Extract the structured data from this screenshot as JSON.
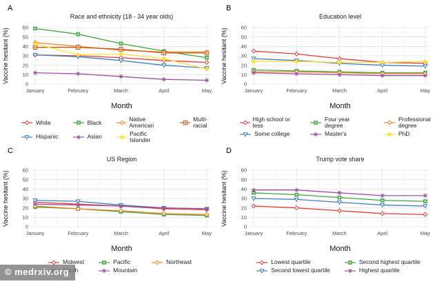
{
  "watermark": "© medrxiv.org",
  "axes": {
    "xlabel": "Month",
    "ylabel": "Vaccine hesitant (%)"
  },
  "chart_data": {
    "type": "line",
    "x_categories": [
      "January",
      "February",
      "March",
      "April",
      "May"
    ],
    "xlabel": "Month",
    "ylabel": "Vaccine hesitant (%)",
    "ylim": [
      0,
      60
    ],
    "yticks": [
      0,
      10,
      20,
      30,
      40,
      50,
      60
    ],
    "grid": true,
    "legend_position": "bottom",
    "panels": [
      {
        "panel_label": "A",
        "title": "Race and ethnicity (18 - 34 year olds)",
        "legend_columns": 4,
        "series": [
          {
            "name": "White",
            "color": "#E03B38",
            "marker": "diamond-open",
            "values": [
              31,
              30,
              28,
              25,
              23
            ]
          },
          {
            "name": "Black",
            "color": "#3FA43F",
            "marker": "square-cross",
            "values": [
              59,
              53,
              43,
              35,
              28
            ]
          },
          {
            "name": "Native American",
            "color": "#F58220",
            "marker": "diamond-open",
            "values": [
              44,
              40,
              36,
              34,
              34
            ]
          },
          {
            "name": "Multi-racial",
            "color": "#C05A17",
            "marker": "square-plus-open",
            "values": [
              39,
              39,
              37,
              33,
              33
            ]
          },
          {
            "name": "Hispanic",
            "color": "#3E7FC1",
            "marker": "triangle-down-open",
            "values": [
              31,
              29,
              25,
              20,
              17
            ]
          },
          {
            "name": "Asian",
            "color": "#9A4FA0",
            "marker": "asterisk",
            "values": [
              12,
              11,
              8,
              5,
              4
            ]
          },
          {
            "name": "Pacific Islander",
            "color": "#FFE135",
            "marker": "diamond-filled",
            "values": [
              43,
              31,
              32,
              27,
              16
            ]
          }
        ]
      },
      {
        "panel_label": "B",
        "title": "Education level",
        "legend_columns": 3,
        "series": [
          {
            "name": "High school or less",
            "color": "#E03B38",
            "marker": "diamond-open",
            "values": [
              35,
              32,
              27,
              23,
              22
            ]
          },
          {
            "name": "Four year degree",
            "color": "#3FA43F",
            "marker": "square-cross",
            "values": [
              15,
              14,
              13,
              12,
              12
            ]
          },
          {
            "name": "Professional degree",
            "color": "#F58220",
            "marker": "diamond-open",
            "wrap": true,
            "values": [
              13,
              13,
              12,
              11,
              11
            ]
          },
          {
            "name": "Some college",
            "color": "#3E7FC1",
            "marker": "triangle-down-open",
            "values": [
              27,
              25,
              22,
              20,
              19
            ]
          },
          {
            "name": "Master's",
            "color": "#9A4FA0",
            "marker": "asterisk",
            "values": [
              12,
              11,
              10,
              9,
              9
            ]
          },
          {
            "name": "PhD",
            "color": "#FFE135",
            "marker": "diamond-filled",
            "values": [
              24,
              24,
              23,
              23,
              24
            ]
          }
        ]
      },
      {
        "panel_label": "C",
        "title": "US Region",
        "legend_columns": 3,
        "series": [
          {
            "name": "Midwest",
            "color": "#E03B38",
            "marker": "diamond-open",
            "values": [
              26,
              24,
              22,
              19,
              18
            ]
          },
          {
            "name": "Pacific",
            "color": "#3FA43F",
            "marker": "square-cross",
            "values": [
              21,
              19,
              16,
              13,
              12
            ]
          },
          {
            "name": "Northeast",
            "color": "#F58220",
            "marker": "diamond-open",
            "values": [
              22,
              19,
              17,
              14,
              13
            ]
          },
          {
            "name": "South",
            "color": "#3E7FC1",
            "marker": "triangle-down-open",
            "values": [
              28,
              27,
              23,
              20,
              19
            ]
          },
          {
            "name": "Mountain",
            "color": "#9A4FA0",
            "marker": "asterisk",
            "values": [
              24,
              23,
              22,
              20,
              19
            ]
          }
        ]
      },
      {
        "panel_label": "D",
        "title": "Trump vote share",
        "legend_columns": 2,
        "series": [
          {
            "name": "Lowest quartile",
            "color": "#E03B38",
            "marker": "diamond-open",
            "values": [
              22,
              20,
              17,
              14,
              13
            ]
          },
          {
            "name": "Second highest quartile",
            "color": "#3FA43F",
            "marker": "square-cross",
            "values": [
              36,
              34,
              31,
              28,
              27
            ]
          },
          {
            "name": "Second lowest quartile",
            "color": "#3E7FC1",
            "marker": "triangle-down-open",
            "values": [
              30,
              29,
              26,
              23,
              22
            ]
          },
          {
            "name": "Highest quartile",
            "color": "#9A4FA0",
            "marker": "asterisk",
            "values": [
              39,
              39,
              36,
              33,
              33
            ]
          }
        ]
      }
    ]
  }
}
